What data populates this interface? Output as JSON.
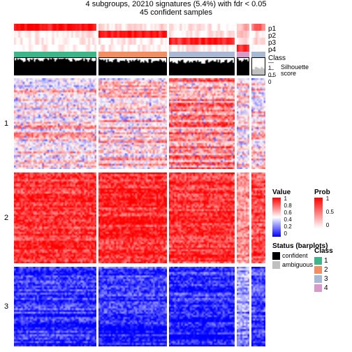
{
  "title_line1": "4 subgroups, 20210 signatures (5.4%) with fdr < 0.05",
  "title_line2": "45 confident samples",
  "title_fontsize": 11,
  "background_color": "#ffffff",
  "group_widths": [
    118,
    98,
    94,
    18,
    20
  ],
  "prob_rows": [
    "p1",
    "p2",
    "p3",
    "p4"
  ],
  "prob_label_fontsize": 10,
  "class_label": "Class",
  "silhouette_label": "Silhouette\nscore",
  "silhouette_ticks": [
    "1",
    "0.5",
    "0"
  ],
  "silhouette_confident_color": "#000000",
  "silhouette_ambiguous_color": "#c0c0c0",
  "prob_gradient": {
    "low": "#ffffff",
    "high": "#ff0000"
  },
  "value_gradient": {
    "low": "#0000ff",
    "mid": "#ffffff",
    "high": "#ff0000"
  },
  "class_colors": [
    "#3eb489",
    "#f28e63",
    "#a9b8d4",
    "#d89ac8"
  ],
  "annotation_p": {
    "p1": [
      0.95,
      0.1,
      0.05,
      0.3,
      0.6
    ],
    "p2": [
      0.05,
      0.9,
      0.05,
      0.15,
      0.1
    ],
    "p3": [
      0.03,
      0.05,
      0.85,
      0.1,
      0.1
    ],
    "p4": [
      0.02,
      0.03,
      0.05,
      0.8,
      0.05
    ]
  },
  "annotation_noise": 0.18,
  "class_assignment": [
    1,
    2,
    3,
    4,
    3
  ],
  "silhouette_means": [
    0.88,
    0.82,
    0.78,
    0.85,
    0.35
  ],
  "silhouette_group5_ambiguous": true,
  "heatmap_rows": [
    "1",
    "2",
    "3"
  ],
  "heatmap_row_heights": [
    130,
    130,
    114
  ],
  "heatmap_block_profiles": {
    "1": {
      "base": 0.6,
      "spread": 0.4,
      "cols": [
        0.55,
        0.6,
        0.72,
        0.5,
        0.58
      ]
    },
    "2": {
      "base": 0.88,
      "spread": 0.2,
      "cols": [
        0.9,
        0.92,
        0.9,
        0.7,
        0.85
      ]
    },
    "3": {
      "base": 0.12,
      "spread": 0.25,
      "cols": [
        0.15,
        0.12,
        0.1,
        0.35,
        0.18
      ]
    }
  },
  "heatmap_striping": 0.3,
  "legends": {
    "value": {
      "title": "Value",
      "ticks": [
        "1",
        "0.8",
        "0.6",
        "0.4",
        "0.2",
        "0"
      ]
    },
    "prob": {
      "title": "Prob",
      "ticks": [
        "1",
        "0.5",
        "0"
      ]
    },
    "status": {
      "title": "Status (barplots)",
      "items": [
        {
          "label": "confident",
          "color": "#000000"
        },
        {
          "label": "ambiguous",
          "color": "#c0c0c0"
        }
      ]
    },
    "class": {
      "title": "Class",
      "items": [
        {
          "label": "1",
          "color": "#3eb489"
        },
        {
          "label": "2",
          "color": "#f28e63"
        },
        {
          "label": "3",
          "color": "#a9b8d4"
        },
        {
          "label": "4",
          "color": "#d89ac8"
        }
      ]
    }
  }
}
